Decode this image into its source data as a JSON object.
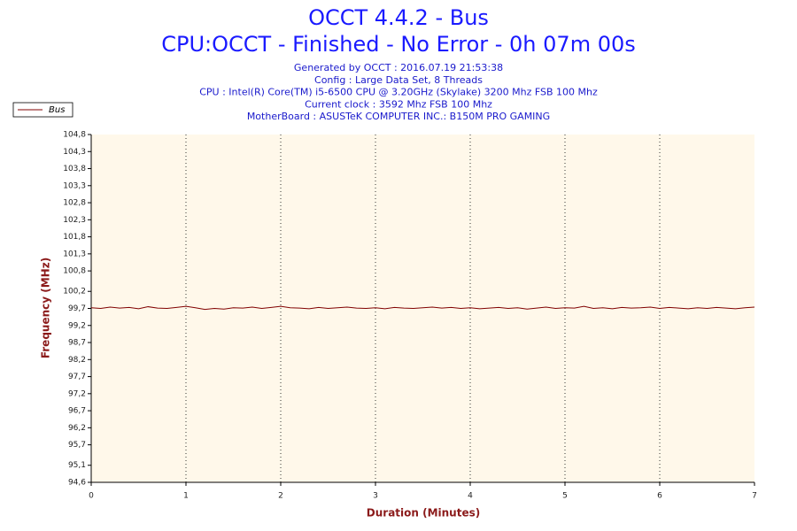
{
  "chart_data": {
    "type": "line",
    "title": "OCCT 4.4.2 - Bus",
    "subtitle": "CPU:OCCT - Finished - No Error - 0h 07m 00s",
    "info_lines": [
      "Generated by OCCT : 2016.07.19 21:53:38",
      "Config : Large Data Set, 8 Threads",
      "CPU : Intel(R) Core(TM) i5-6500 CPU @ 3.20GHz (Skylake) 3200 Mhz FSB 100 Mhz",
      "Current clock : 3592 Mhz FSB 100 Mhz",
      "MotherBoard : ASUSTeK COMPUTER INC.: B150M PRO GAMING"
    ],
    "x_label": "Duration (Minutes)",
    "y_label": "Frequency (MHz)",
    "x": [
      0,
      0.1,
      0.2,
      0.3,
      0.4,
      0.5,
      0.6,
      0.7,
      0.8,
      0.9,
      1,
      1.1,
      1.2,
      1.3,
      1.4,
      1.5,
      1.6,
      1.7,
      1.8,
      1.9,
      2,
      2.1,
      2.2,
      2.3,
      2.4,
      2.5,
      2.6,
      2.7,
      2.8,
      2.9,
      3,
      3.1,
      3.2,
      3.3,
      3.4,
      3.5,
      3.6,
      3.7,
      3.8,
      3.9,
      4,
      4.1,
      4.2,
      4.3,
      4.4,
      4.5,
      4.6,
      4.7,
      4.8,
      4.9,
      5,
      5.1,
      5.2,
      5.3,
      5.4,
      5.5,
      5.6,
      5.7,
      5.8,
      5.9,
      6,
      6.1,
      6.2,
      6.3,
      6.4,
      6.5,
      6.6,
      6.7,
      6.8,
      6.9,
      7
    ],
    "series": [
      {
        "name": "Bus",
        "color": "#800000",
        "values": [
          99.72,
          99.7,
          99.74,
          99.71,
          99.73,
          99.69,
          99.75,
          99.71,
          99.7,
          99.73,
          99.76,
          99.72,
          99.67,
          99.7,
          99.68,
          99.72,
          99.71,
          99.74,
          99.7,
          99.73,
          99.76,
          99.72,
          99.71,
          99.69,
          99.73,
          99.7,
          99.72,
          99.74,
          99.71,
          99.7,
          99.72,
          99.69,
          99.73,
          99.71,
          99.7,
          99.72,
          99.74,
          99.71,
          99.73,
          99.7,
          99.72,
          99.69,
          99.71,
          99.73,
          99.7,
          99.72,
          99.68,
          99.71,
          99.74,
          99.7,
          99.72,
          99.71,
          99.76,
          99.7,
          99.72,
          99.69,
          99.73,
          99.71,
          99.72,
          99.74,
          99.7,
          99.73,
          99.71,
          99.69,
          99.72,
          99.7,
          99.73,
          99.71,
          99.69,
          99.72,
          99.74
        ]
      }
    ],
    "xlim": [
      0,
      7
    ],
    "xticks": [
      0,
      1,
      2,
      3,
      4,
      5,
      6,
      7
    ],
    "ylim": [
      94.6,
      104.8
    ],
    "yticks": [
      {
        "value": 94.6,
        "label": "94,6"
      },
      {
        "value": 95.1,
        "label": "95,1"
      },
      {
        "value": 95.7,
        "label": "95,7"
      },
      {
        "value": 96.2,
        "label": "96,2"
      },
      {
        "value": 96.7,
        "label": "96,7"
      },
      {
        "value": 97.2,
        "label": "97,2"
      },
      {
        "value": 97.7,
        "label": "97,7"
      },
      {
        "value": 98.2,
        "label": "98,2"
      },
      {
        "value": 98.7,
        "label": "98,7"
      },
      {
        "value": 99.2,
        "label": "99,2"
      },
      {
        "value": 99.7,
        "label": "99,7"
      },
      {
        "value": 100.2,
        "label": "100,2"
      },
      {
        "value": 100.8,
        "label": "100,8"
      },
      {
        "value": 101.3,
        "label": "101,3"
      },
      {
        "value": 101.8,
        "label": "101,8"
      },
      {
        "value": 102.3,
        "label": "102,3"
      },
      {
        "value": 102.8,
        "label": "102,8"
      },
      {
        "value": 103.3,
        "label": "103,3"
      },
      {
        "value": 103.8,
        "label": "103,8"
      },
      {
        "value": 104.3,
        "label": "104,3"
      },
      {
        "value": 104.8,
        "label": "104,8"
      }
    ],
    "x_grid": true,
    "legend": "top-left"
  }
}
